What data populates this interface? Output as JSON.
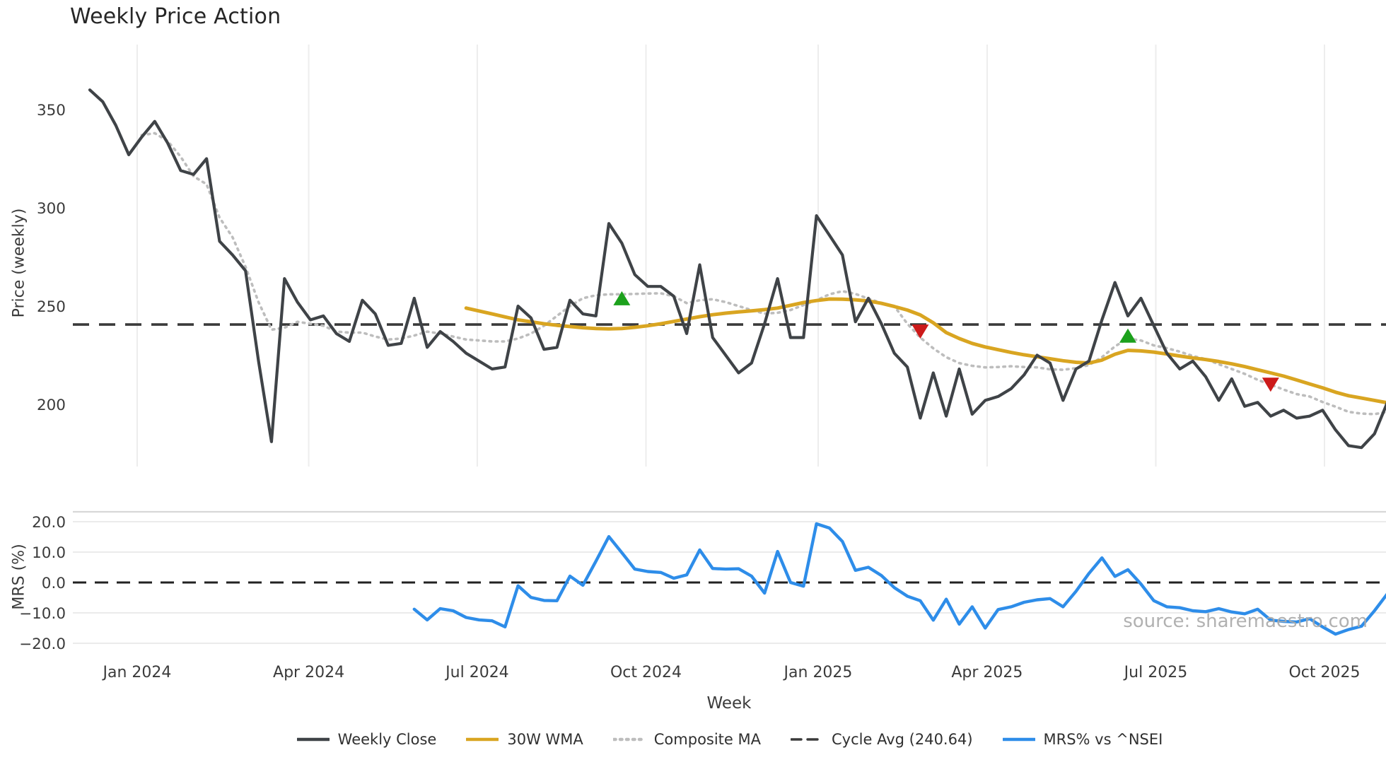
{
  "title": "Weekly Price Action",
  "watermark": "source: sharemaestro.com",
  "colors": {
    "weekly_close": "#3F4347",
    "wma30": "#D9A521",
    "composite_ma": "#BDBDBD",
    "cycle_avg": "#3A3A3A",
    "mrs": "#2E8DE9",
    "buy_marker": "#1CA11C",
    "sell_marker": "#CC1A1A",
    "grid": "#EDEDED",
    "panel_border": "#D8D8D8",
    "tick_text": "#3B3B3B"
  },
  "legend": {
    "items": [
      {
        "label": "Weekly Close",
        "style": "solid",
        "color": "#3F4347"
      },
      {
        "label": "30W WMA",
        "style": "solid",
        "color": "#D9A521"
      },
      {
        "label": "Composite MA",
        "style": "dotted",
        "color": "#BDBDBD"
      },
      {
        "label": "Cycle Avg (240.64)",
        "style": "dashed",
        "color": "#3A3A3A"
      },
      {
        "label": "MRS% vs ^NSEI",
        "style": "solid",
        "color": "#2E8DE9"
      }
    ]
  },
  "chart_data": {
    "type": "line",
    "x_axis": {
      "label": "Week",
      "ticks": [
        {
          "label": "Jan 2024",
          "week": 3.65
        },
        {
          "label": "Apr 2024",
          "week": 16.87
        },
        {
          "label": "Jul 2024",
          "week": 29.86
        },
        {
          "label": "Oct 2024",
          "week": 42.86
        },
        {
          "label": "Jan 2025",
          "week": 56.13
        },
        {
          "label": "Apr 2025",
          "week": 69.15
        },
        {
          "label": "Jul 2025",
          "week": 82.15
        },
        {
          "label": "Oct 2025",
          "week": 95.15
        }
      ]
    },
    "panels": [
      {
        "name": "price",
        "ylabel": "Price (weekly)",
        "ylim": [
          168,
          383
        ],
        "yticks": [
          {
            "label": "350",
            "value": 350
          },
          {
            "label": "300",
            "value": 300
          },
          {
            "label": "250",
            "value": 250
          },
          {
            "label": "200",
            "value": 200
          }
        ],
        "hline": {
          "label": "Cycle Avg",
          "value": 240.64
        },
        "series": [
          {
            "name": "Weekly Close",
            "start_week": 0,
            "values": [
              360,
              354,
              342,
              327,
              336,
              344,
              333,
              319,
              317,
              325,
              283,
              276,
              268,
              222,
              181,
              264,
              252,
              243,
              245,
              236,
              232,
              253,
              246,
              230,
              231,
              254,
              229,
              237,
              232,
              226,
              222,
              218,
              219,
              250,
              244,
              228,
              229,
              253,
              246,
              245,
              292,
              282,
              266,
              260,
              260,
              255,
              236,
              271,
              234,
              225,
              216,
              221,
              241,
              264,
              234,
              234,
              296,
              286,
              276,
              242,
              254,
              241,
              226,
              219,
              193,
              216,
              194,
              218,
              195,
              202,
              204,
              208,
              215,
              225,
              221,
              202,
              218,
              222,
              243,
              262,
              245,
              254,
              240,
              226,
              218,
              222,
              214,
              202,
              213,
              199,
              201,
              194,
              197,
              193,
              194,
              197,
              187,
              179,
              178,
              185,
              201
            ]
          },
          {
            "name": "30W WMA",
            "start_week": 29,
            "values": [
              249,
              247.5,
              246,
              244.5,
              243,
              242,
              241,
              240.2,
              239.6,
              239,
              238.6,
              238.4,
              238.6,
              239.2,
              240,
              241,
              242.2,
              243.4,
              244.6,
              245.6,
              246.4,
              247,
              247.6,
              248.2,
              249,
              250.4,
              251.8,
              252.8,
              253.6,
              253.5,
              253.2,
              252.6,
              251.4,
              249.8,
              248,
              245.5,
              241.5,
              236.5,
              233.5,
              231,
              229.2,
              227.8,
              226.4,
              225.2,
              224.2,
              223.2,
              222.2,
              221.4,
              221,
              222.5,
              225.5,
              227.5,
              227.2,
              226.6,
              225.6,
              224.6,
              223.6,
              222.8,
              221.8,
              220.6,
              219.2,
              217.6,
              216,
              214.4,
              212.4,
              210.4,
              208.4,
              206.2,
              204.4,
              203.2,
              202,
              200.8
            ]
          },
          {
            "name": "Composite MA",
            "start_week": 4,
            "values": [
              337,
              338,
              334,
              326,
              316,
              312,
              295,
              285,
              270,
              252,
              238,
              239,
              242,
              241,
              240,
              237,
              236.5,
              236.5,
              234.5,
              233,
              233.5,
              235,
              237,
              236,
              234.5,
              233,
              232.5,
              232,
              232,
              233.5,
              236,
              240,
              245,
              250,
              254,
              255.5,
              256,
              256,
              256.2,
              256.4,
              256.5,
              255,
              251.5,
              253,
              253.5,
              252,
              250,
              248,
              246.2,
              246.6,
              248,
              250.5,
              253,
              256,
              257.6,
              256.2,
              253.8,
              251.6,
              250,
              241,
              234,
              228.5,
              224,
              221,
              219.6,
              218.8,
              219,
              219.4,
              219,
              218.8,
              217.8,
              217.6,
              218.4,
              220,
              224,
              229.5,
              233.5,
              232.5,
              230,
              228.6,
              226.8,
              224.6,
              223,
              220.4,
              218,
              215.5,
              212.5,
              210,
              207.5,
              205.2,
              204,
              201.2,
              198.8,
              196.2,
              195.3,
              195,
              196.2
            ]
          }
        ],
        "signals": [
          {
            "type": "buy",
            "week": 41,
            "price": 254
          },
          {
            "type": "sell",
            "week": 64,
            "price": 237
          },
          {
            "type": "buy",
            "week": 80,
            "price": 235
          },
          {
            "type": "sell",
            "week": 91,
            "price": 210
          }
        ]
      },
      {
        "name": "mrs",
        "ylabel": "MRS (%)",
        "ylim": [
          -23,
          23
        ],
        "yticks": [
          {
            "label": "20.0",
            "value": 20
          },
          {
            "label": "10.0",
            "value": 10
          },
          {
            "label": "0.0",
            "value": 0
          },
          {
            "label": "−10.0",
            "value": -10
          },
          {
            "label": "−20.0",
            "value": -20
          }
        ],
        "hline": {
          "label": "zero line",
          "value": 0
        },
        "series": [
          {
            "name": "MRS% vs ^NSEI",
            "start_week": 25,
            "values": [
              -8.8,
              -12.3,
              -8.6,
              -9.3,
              -11.5,
              -12.3,
              -12.6,
              -14.6,
              -1.1,
              -4.9,
              -5.9,
              -6.0,
              2.1,
              -0.9,
              7.0,
              15.1,
              9.8,
              4.4,
              3.6,
              3.3,
              1.4,
              2.5,
              10.7,
              4.6,
              4.4,
              4.5,
              2.1,
              -3.5,
              10.2,
              0.0,
              -1.2,
              19.3,
              17.9,
              13.5,
              4.0,
              5.0,
              2.3,
              -1.7,
              -4.5,
              -6.0,
              -12.4,
              -5.5,
              -13.7,
              -8.0,
              -15.0,
              -8.9,
              -8.0,
              -6.5,
              -5.7,
              -5.3,
              -8.0,
              -2.9,
              3.0,
              8.1,
              2.0,
              4.2,
              -0.5,
              -6.0,
              -8.0,
              -8.3,
              -9.3,
              -9.6,
              -8.6,
              -9.7,
              -10.3,
              -8.8,
              -12.4,
              -12.8,
              -13.0,
              -11.9,
              -14.6,
              -17.0,
              -15.5,
              -14.4,
              -9.3,
              -3.7
            ]
          }
        ]
      }
    ]
  }
}
